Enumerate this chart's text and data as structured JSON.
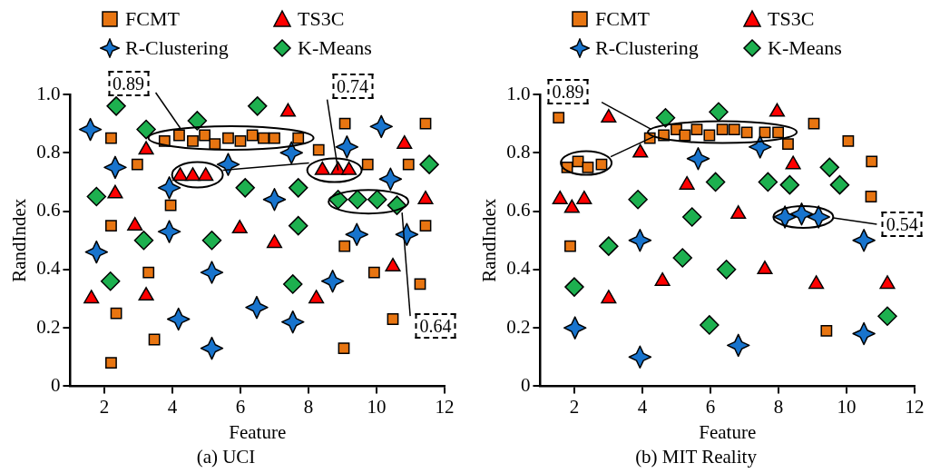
{
  "chart_data": [
    {
      "type": "scatter",
      "title": "(a) UCI",
      "xlabel": "Feature",
      "ylabel": "RandIndex",
      "xlim": [
        1,
        12
      ],
      "xticks": [
        2,
        4,
        6,
        8,
        10,
        12
      ],
      "ylim": [
        0,
        1
      ],
      "yticks": [
        0,
        0.2,
        0.4,
        0.6,
        0.8,
        {
          "value": 1,
          "label": "1.0"
        }
      ],
      "grid": false,
      "legend": "top",
      "annotations": [
        {
          "text": "0.89",
          "x": 4.23,
          "y": 0.885
        },
        {
          "text": "0.74",
          "x": 8.87,
          "y": 0.74
        },
        {
          "text": "0.64",
          "x": 10.75,
          "y": 0.595
        }
      ],
      "series": [
        {
          "name": "FCMT",
          "color": "#e87511",
          "marker": "square",
          "x": [
            2.2,
            2.2,
            2.35,
            2.2,
            2.97,
            3.3,
            3.47,
            3.95,
            3.77,
            4.2,
            4.6,
            4.95,
            5.25,
            5.64,
            6.0,
            6.35,
            6.68,
            7.0,
            7.7,
            8.3,
            9.07,
            9.74,
            9.06,
            9.04,
            9.93,
            10.48,
            10.94,
            11.44,
            11.44,
            11.28
          ],
          "values": [
            0.85,
            0.55,
            0.25,
            0.08,
            0.76,
            0.39,
            0.16,
            0.62,
            0.84,
            0.86,
            0.84,
            0.86,
            0.83,
            0.85,
            0.84,
            0.86,
            0.85,
            0.85,
            0.85,
            0.81,
            0.9,
            0.76,
            0.48,
            0.13,
            0.39,
            0.23,
            0.76,
            0.9,
            0.55,
            0.35
          ]
        },
        {
          "name": "TS3C",
          "color": "#ff0000",
          "marker": "triangle",
          "x": [
            1.62,
            2.32,
            2.9,
            3.23,
            3.23,
            4.23,
            4.6,
            4.98,
            5.98,
            7.0,
            7.4,
            8.41,
            8.87,
            9.19,
            8.23,
            10.82,
            10.48,
            11.44
          ],
          "values": [
            0.3,
            0.66,
            0.55,
            0.81,
            0.31,
            0.72,
            0.72,
            0.72,
            0.54,
            0.49,
            0.94,
            0.74,
            0.74,
            0.74,
            0.3,
            0.83,
            0.41,
            0.64
          ]
        },
        {
          "name": "R-Clustering",
          "color": "#1874cd",
          "marker": "star",
          "x": [
            1.59,
            1.77,
            2.32,
            3.91,
            3.91,
            4.18,
            5.16,
            5.16,
            5.64,
            6.48,
            7.0,
            7.5,
            7.54,
            9.13,
            8.71,
            9.42,
            10.14,
            10.41,
            10.89
          ],
          "values": [
            0.88,
            0.46,
            0.75,
            0.68,
            0.53,
            0.23,
            0.39,
            0.13,
            0.76,
            0.27,
            0.64,
            0.8,
            0.22,
            0.82,
            0.36,
            0.52,
            0.89,
            0.71,
            0.52
          ]
        },
        {
          "name": "K-Means",
          "color": "#1db04f",
          "marker": "diamond",
          "x": [
            2.35,
            1.77,
            2.18,
            3.23,
            3.16,
            4.73,
            5.16,
            6.14,
            6.5,
            7.7,
            7.7,
            7.54,
            8.87,
            9.44,
            10.02,
            10.6,
            11.55
          ],
          "values": [
            0.96,
            0.65,
            0.36,
            0.88,
            0.5,
            0.91,
            0.5,
            0.68,
            0.96,
            0.68,
            0.55,
            0.35,
            0.64,
            0.64,
            0.64,
            0.62,
            0.76
          ]
        }
      ]
    },
    {
      "type": "scatter",
      "title": "(b) MIT Reality",
      "xlabel": "Feature",
      "ylabel": "RandIndex",
      "xlim": [
        1,
        12
      ],
      "xticks": [
        2,
        4,
        6,
        8,
        10,
        12
      ],
      "ylim": [
        0,
        1
      ],
      "yticks": [
        0,
        0.2,
        0.4,
        0.6,
        0.8,
        {
          "value": 1,
          "label": "1.0"
        }
      ],
      "grid": false,
      "legend": "top",
      "annotations": [
        {
          "text": "0.89",
          "x": 4.27,
          "y": 0.88
        },
        {
          "text": "0.54",
          "x": 9.61,
          "y": 0.577
        }
      ],
      "series": [
        {
          "name": "FCMT",
          "color": "#e87511",
          "marker": "square",
          "x": [
            1.54,
            1.88,
            1.79,
            2.11,
            2.4,
            2.8,
            4.22,
            4.63,
            5.0,
            5.25,
            5.6,
            5.97,
            6.35,
            6.7,
            7.07,
            7.6,
            7.99,
            8.28,
            9.04,
            10.05,
            10.74,
            10.72,
            9.41
          ],
          "values": [
            0.92,
            0.48,
            0.75,
            0.77,
            0.75,
            0.76,
            0.85,
            0.86,
            0.88,
            0.86,
            0.88,
            0.86,
            0.88,
            0.88,
            0.87,
            0.87,
            0.87,
            0.83,
            0.9,
            0.84,
            0.77,
            0.65,
            0.19
          ]
        },
        {
          "name": "TS3C",
          "color": "#ff0000",
          "marker": "triangle",
          "x": [
            1.58,
            1.93,
            2.29,
            3.01,
            3.94,
            3.01,
            4.59,
            5.31,
            7.96,
            8.43,
            6.82,
            7.6,
            9.11,
            11.2
          ],
          "values": [
            0.64,
            0.61,
            0.64,
            0.92,
            0.8,
            0.3,
            0.36,
            0.69,
            0.94,
            0.76,
            0.59,
            0.4,
            0.35,
            0.35
          ]
        },
        {
          "name": "R-Clustering",
          "color": "#1874cd",
          "marker": "star",
          "x": [
            2.02,
            3.93,
            3.93,
            5.64,
            7.46,
            6.82,
            8.19,
            8.68,
            9.18,
            10.51,
            10.51
          ],
          "values": [
            0.2,
            0.5,
            0.1,
            0.78,
            0.82,
            0.14,
            0.58,
            0.59,
            0.58,
            0.5,
            0.18
          ]
        },
        {
          "name": "K-Means",
          "color": "#1db04f",
          "marker": "diamond",
          "x": [
            2.0,
            3.01,
            3.87,
            4.68,
            5.46,
            5.18,
            5.97,
            6.15,
            6.24,
            6.47,
            7.69,
            8.33,
            9.5,
            9.8,
            11.2
          ],
          "values": [
            0.34,
            0.48,
            0.64,
            0.92,
            0.58,
            0.44,
            0.21,
            0.7,
            0.94,
            0.4,
            0.7,
            0.69,
            0.75,
            0.69,
            0.24
          ]
        }
      ]
    }
  ]
}
